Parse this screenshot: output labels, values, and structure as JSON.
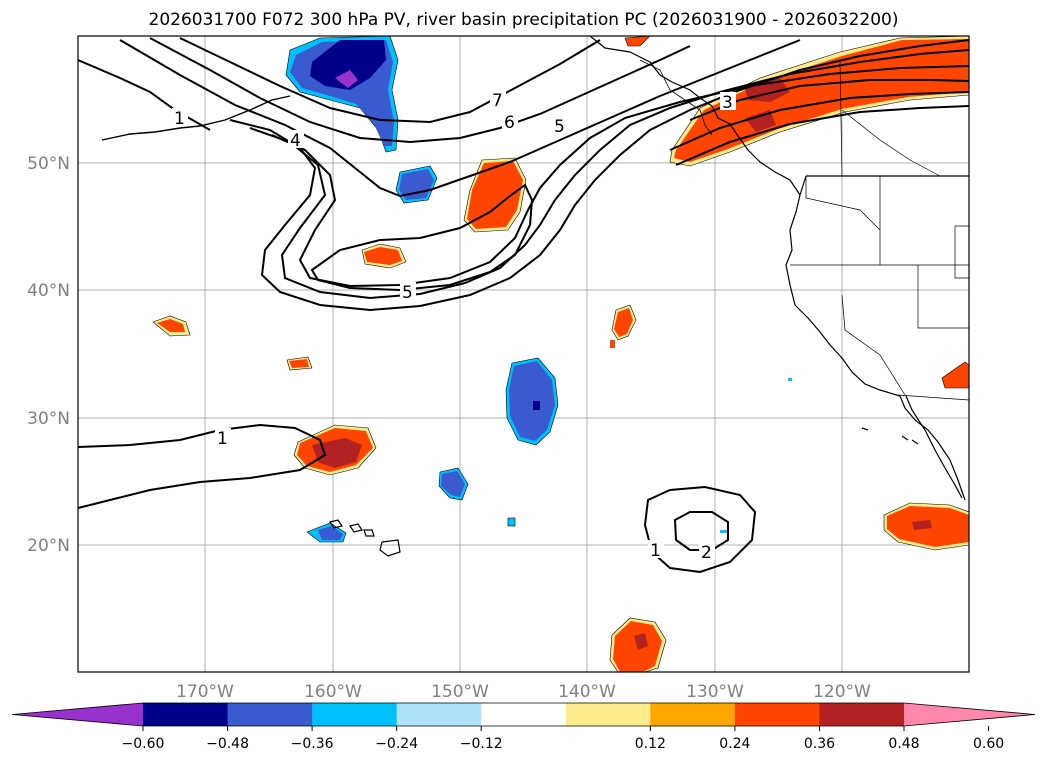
{
  "title": "2026031700 F072 300 hPa PV, river basin precipitation PC (2026031900 - 2026032200)",
  "map": {
    "lat_labels": [
      "50°N",
      "40°N",
      "30°N",
      "20°N"
    ],
    "lon_labels": [
      "170°W",
      "160°W",
      "150°W",
      "140°W",
      "130°W",
      "120°W"
    ],
    "pv_contour_labels": [
      "1",
      "4",
      "7",
      "6",
      "5",
      "3",
      "5",
      "1",
      "1",
      "2"
    ]
  },
  "colorbar": {
    "ticks": [
      "−0.60",
      "−0.48",
      "−0.36",
      "−0.24",
      "−0.12",
      "0.12",
      "0.24",
      "0.36",
      "0.48",
      "0.60"
    ],
    "colors": [
      "#9932CC",
      "#00008B",
      "#3A5BCF",
      "#00BFFF",
      "#ADE2FA",
      "#FFFFFF",
      "#FFEB8C",
      "#FFA500",
      "#FF4500",
      "#B22222",
      "#FF88AA"
    ]
  }
}
